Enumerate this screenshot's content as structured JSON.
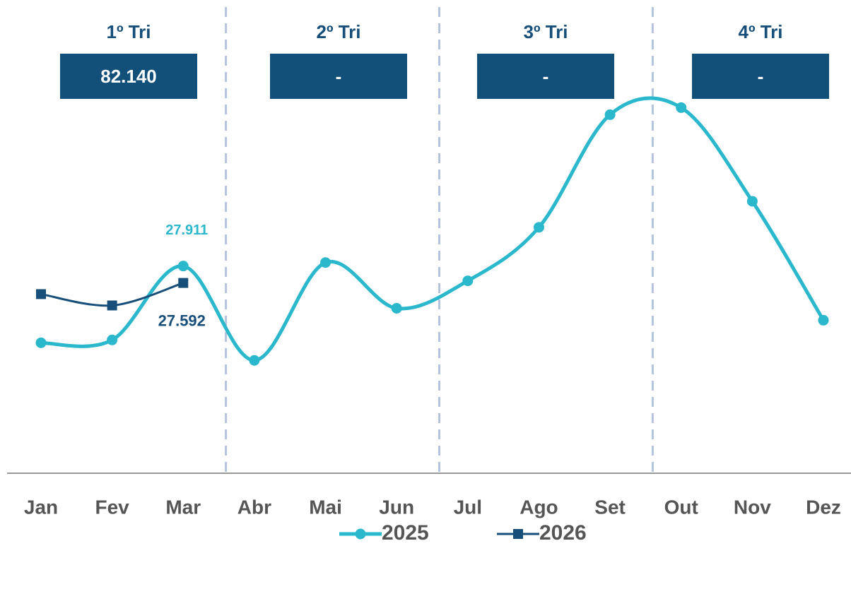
{
  "chart_data": {
    "type": "line",
    "categories": [
      "Jan",
      "Fev",
      "Mar",
      "Abr",
      "Mai",
      "Jun",
      "Jul",
      "Ago",
      "Set",
      "Out",
      "Nov",
      "Dez"
    ],
    "series": [
      {
        "name": "2025",
        "color": "#2bb8cc",
        "marker": "circle",
        "values": [
          26462,
          26516,
          27911,
          26130,
          27977,
          27114,
          27632,
          28642,
          30768,
          30901,
          29134,
          26888
        ],
        "value_labels": [
          null,
          null,
          "27.911",
          null,
          null,
          null,
          null,
          null,
          null,
          null,
          null,
          null
        ]
      },
      {
        "name": "2026",
        "color": "#174f7a",
        "marker": "square",
        "values": [
          27381,
          27167,
          27592,
          null,
          null,
          null,
          null,
          null,
          null,
          null,
          null,
          null
        ],
        "value_labels": [
          null,
          null,
          "27.592",
          null,
          null,
          null,
          null,
          null,
          null,
          null,
          null,
          null
        ]
      }
    ],
    "quarters": [
      {
        "label": "1º Tri",
        "value": 82140,
        "value_label": "82.140"
      },
      {
        "label": "2º Tri",
        "value": null,
        "value_label": "-"
      },
      {
        "label": "3º Tri",
        "value": null,
        "value_label": "-"
      },
      {
        "label": "4º Tri",
        "value": null,
        "value_label": "-"
      }
    ],
    "ylim": [
      24000,
      31200
    ],
    "legend": "bottom"
  }
}
